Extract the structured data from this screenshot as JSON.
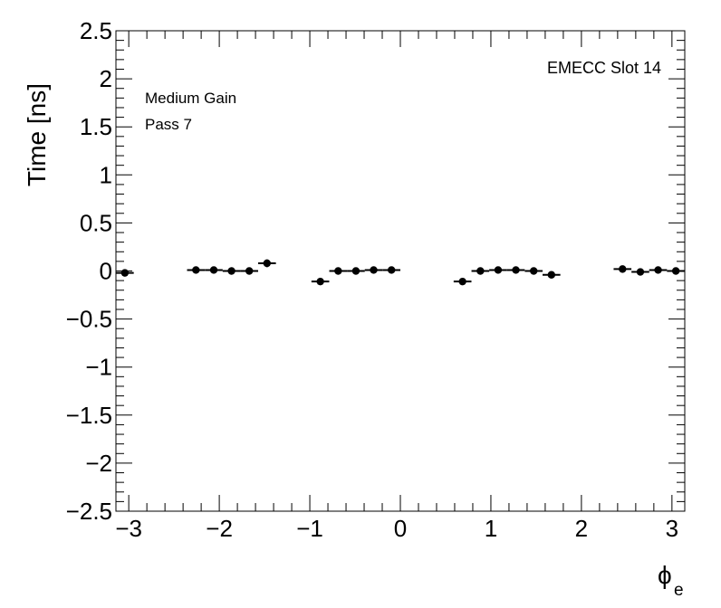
{
  "chart_data": {
    "type": "scatter",
    "title": "",
    "xlabel": "ϕ",
    "xlabel_sub": "e",
    "ylabel": "Time [ns]",
    "xlim": [
      -3.1416,
      3.1416
    ],
    "ylim": [
      -2.5,
      2.5
    ],
    "x_ticks": [
      -3,
      -2,
      -1,
      0,
      1,
      2,
      3
    ],
    "x_tick_labels": [
      "−3",
      "−2",
      "−1",
      "0",
      "1",
      "2",
      "3"
    ],
    "y_ticks": [
      -2.5,
      -2,
      -1.5,
      -1,
      -0.5,
      0,
      0.5,
      1,
      1.5,
      2,
      2.5
    ],
    "y_tick_labels": [
      "−2.5",
      "−2",
      "−1.5",
      "−1",
      "−0.5",
      "0",
      "0.5",
      "1",
      "1.5",
      "2",
      "2.5"
    ],
    "grid": false,
    "annotations": {
      "top_right": "EMECC Slot 14",
      "line1": "Medium Gain",
      "line2": "Pass 7"
    },
    "bin_halfwidth": 0.0982,
    "points": [
      {
        "x": -3.043,
        "y": -0.02,
        "yerr": 0.01
      },
      {
        "x": -2.258,
        "y": 0.01,
        "yerr": 0.01
      },
      {
        "x": -2.061,
        "y": 0.01,
        "yerr": 0.01
      },
      {
        "x": -1.865,
        "y": 0.0,
        "yerr": 0.01
      },
      {
        "x": -1.669,
        "y": 0.0,
        "yerr": 0.01
      },
      {
        "x": -1.473,
        "y": 0.08,
        "yerr": 0.04
      },
      {
        "x": -0.884,
        "y": -0.11,
        "yerr": 0.01
      },
      {
        "x": -0.687,
        "y": 0.0,
        "yerr": 0.01
      },
      {
        "x": -0.491,
        "y": 0.0,
        "yerr": 0.01
      },
      {
        "x": -0.295,
        "y": 0.01,
        "yerr": 0.01
      },
      {
        "x": -0.098,
        "y": 0.01,
        "yerr": 0.01
      },
      {
        "x": 0.687,
        "y": -0.11,
        "yerr": 0.01
      },
      {
        "x": 0.884,
        "y": 0.0,
        "yerr": 0.01
      },
      {
        "x": 1.08,
        "y": 0.01,
        "yerr": 0.01
      },
      {
        "x": 1.276,
        "y": 0.01,
        "yerr": 0.01
      },
      {
        "x": 1.473,
        "y": 0.0,
        "yerr": 0.01
      },
      {
        "x": 1.669,
        "y": -0.04,
        "yerr": 0.01
      },
      {
        "x": 2.454,
        "y": 0.02,
        "yerr": 0.01
      },
      {
        "x": 2.651,
        "y": -0.01,
        "yerr": 0.01
      },
      {
        "x": 2.847,
        "y": 0.01,
        "yerr": 0.01
      },
      {
        "x": 3.043,
        "y": 0.0,
        "yerr": 0.01
      }
    ]
  }
}
